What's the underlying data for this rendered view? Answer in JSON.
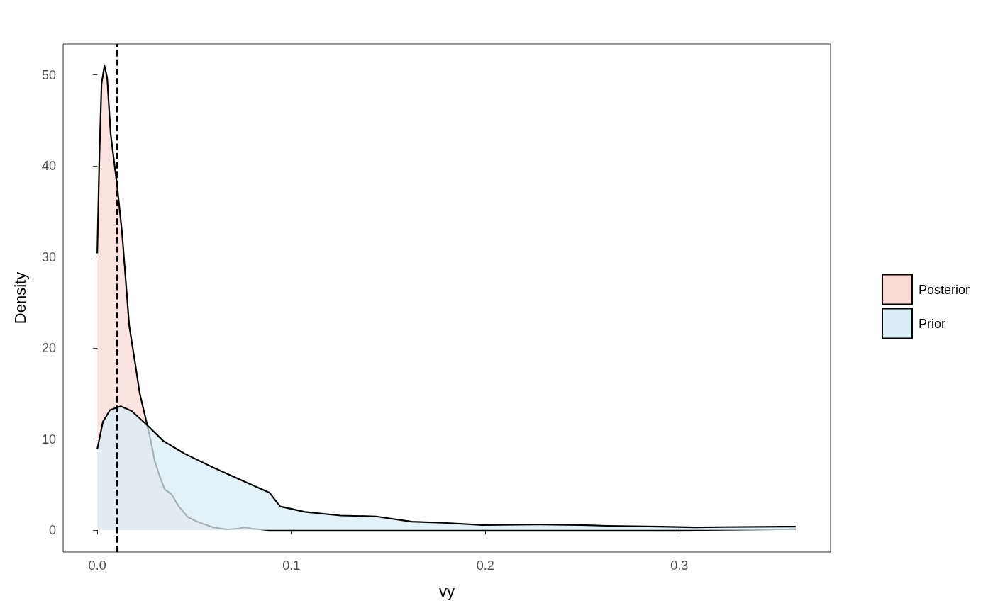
{
  "chart_data": {
    "type": "area",
    "xlabel": "vy",
    "ylabel": "Density",
    "series": [
      {
        "name": "Posterior",
        "color": "#f9dad7",
        "x": [
          0,
          0.0011,
          0.0022,
          0.0037,
          0.0051,
          0.0069,
          0.0102,
          0.0128,
          0.0165,
          0.0194,
          0.0219,
          0.0249,
          0.0274,
          0.0296,
          0.0322,
          0.0347,
          0.0384,
          0.042,
          0.0468,
          0.0523,
          0.0596,
          0.0669,
          0.0724,
          0.076,
          0.0797,
          0.0888,
          0.133,
          0.2,
          0.3,
          0.36
        ],
        "values": [
          30.4,
          41,
          49,
          51,
          49.7,
          43.5,
          37.9,
          32.6,
          22.4,
          18.5,
          15,
          12.3,
          10,
          7.6,
          5.9,
          4.5,
          3.9,
          2.6,
          1.4,
          0.86,
          0.31,
          0.08,
          0.16,
          0.3,
          0.16,
          0,
          0,
          0,
          0,
          0.1
        ]
      },
      {
        "name": "Prior",
        "color": "#dbeef5",
        "x": [
          0,
          0.0029,
          0.0066,
          0.0121,
          0.0176,
          0.0249,
          0.034,
          0.045,
          0.0596,
          0.0742,
          0.0888,
          0.0943,
          0.1071,
          0.1254,
          0.1437,
          0.162,
          0.1803,
          0.1985,
          0.226,
          0.2497,
          0.2625,
          0.29,
          0.3082,
          0.354,
          0.36
        ],
        "values": [
          8.9,
          11.9,
          13.2,
          13.6,
          13.1,
          11.7,
          9.8,
          8.4,
          6.9,
          5.5,
          4.1,
          2.6,
          2.0,
          1.6,
          1.5,
          0.93,
          0.78,
          0.55,
          0.62,
          0.55,
          0.47,
          0.39,
          0.31,
          0.39,
          0.39
        ]
      }
    ],
    "xlim": [
      -0.0176,
      0.378
    ],
    "ylim": [
      -2.41,
      53.4
    ],
    "xticks": [
      {
        "value": 0,
        "label": "0.0"
      },
      {
        "value": 0.1,
        "label": "0.1"
      },
      {
        "value": 0.2,
        "label": "0.2"
      },
      {
        "value": 0.3,
        "label": "0.3"
      }
    ],
    "yticks": [
      0,
      10,
      20,
      30,
      40,
      50
    ],
    "ref_lines": [
      {
        "axis": "x",
        "value": 0.01,
        "line_style": "dashed"
      }
    ],
    "grid": false,
    "legend": "right",
    "marker": "none",
    "line_style": "solid"
  }
}
